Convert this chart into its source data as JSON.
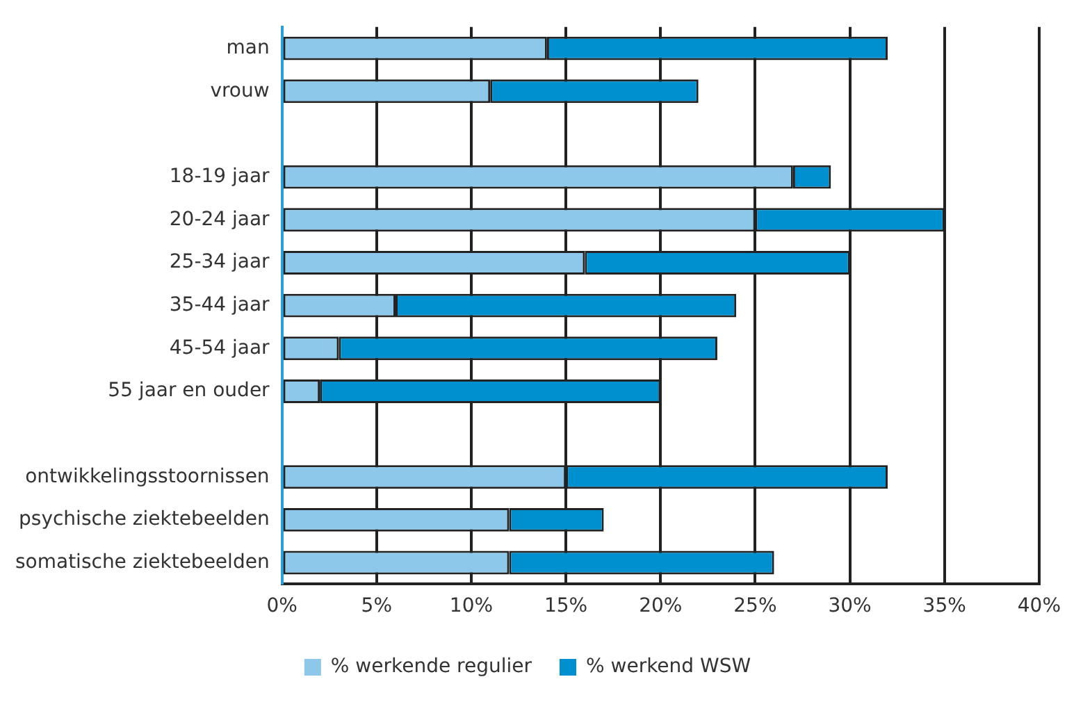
{
  "chart_data": {
    "type": "bar",
    "orientation": "horizontal",
    "stacked": true,
    "categories": [
      "man",
      "vrouw",
      null,
      "18-19 jaar",
      "20-24 jaar",
      "25-34 jaar",
      "35-44 jaar",
      "45-54 jaar",
      "55 jaar en ouder",
      null,
      "ontwikkelingsstoornissen",
      "psychische ziektebeelden",
      "somatische ziektebeelden"
    ],
    "series": [
      {
        "name": "% werkende regulier",
        "color": "#8dc8ea",
        "values": [
          14,
          11,
          null,
          27,
          25,
          16,
          6,
          3,
          2,
          null,
          15,
          12,
          12
        ]
      },
      {
        "name": "% werkend WSW",
        "color": "#0090d0",
        "values": [
          18,
          11,
          null,
          2,
          10,
          14,
          18,
          20,
          18,
          null,
          17,
          5,
          14
        ]
      }
    ],
    "xlim": [
      0,
      40
    ],
    "xticks": [
      {
        "value": 0,
        "label": "0%"
      },
      {
        "value": 5,
        "label": "5%"
      },
      {
        "value": 10,
        "label": "10%"
      },
      {
        "value": 15,
        "label": "15%"
      },
      {
        "value": 20,
        "label": "20%"
      },
      {
        "value": 25,
        "label": "25%"
      },
      {
        "value": 30,
        "label": "30%"
      },
      {
        "value": 35,
        "label": "35%"
      },
      {
        "value": 40,
        "label": "40%"
      }
    ],
    "grid": "x",
    "legend": "bottom"
  }
}
